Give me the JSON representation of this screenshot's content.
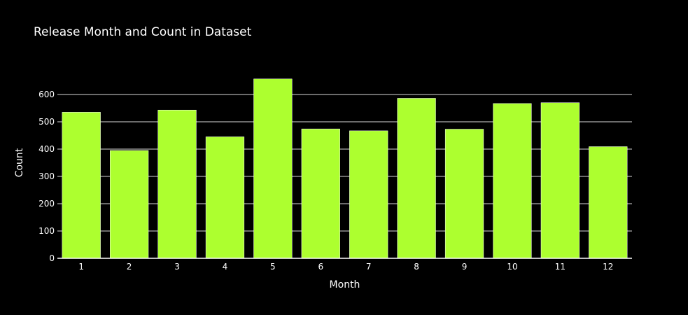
{
  "chart_data": {
    "type": "bar",
    "title": "Release Month and Count in Dataset",
    "xlabel": "Month",
    "ylabel": "Count",
    "categories": [
      "1",
      "2",
      "3",
      "4",
      "5",
      "6",
      "7",
      "8",
      "9",
      "10",
      "11",
      "12"
    ],
    "values": [
      535,
      395,
      543,
      445,
      657,
      474,
      467,
      586,
      473,
      567,
      570,
      409
    ],
    "ylim": [
      0,
      700
    ],
    "yticks": [
      0,
      100,
      200,
      300,
      400,
      500,
      600
    ],
    "ytick_labels": [
      "0",
      "100",
      "200",
      "300",
      "400",
      "500",
      "600"
    ],
    "grid": true,
    "legend": "none",
    "colors": {
      "background": "#000000",
      "bar": "#adff2f",
      "bar_outline": "#ffffff",
      "text": "#ffffff",
      "grid": "#ffffff"
    }
  }
}
